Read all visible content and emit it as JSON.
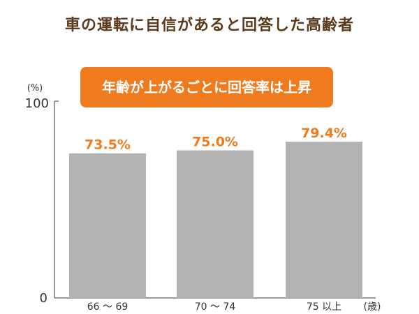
{
  "chart_data": {
    "type": "bar",
    "title": "車の運転に自信があると回答した高齢者",
    "annotation": "年齢が上がるごとに回答率は上昇",
    "ylabel": "(%)",
    "xlabel": "(歳)",
    "categories": [
      "66 ～ 69",
      "70 ～ 74",
      "75 以上"
    ],
    "values": [
      73.5,
      75.0,
      79.4
    ],
    "data_labels": [
      "73.5%",
      "75.0%",
      "79.4%"
    ],
    "y_ticks": [
      "0",
      "100"
    ],
    "ylim": [
      0,
      100
    ],
    "grid": false,
    "colors": {
      "bar": "#b3b3b3",
      "label": "#f07b1e",
      "banner": "#f07b1e",
      "title": "#5a3a1a"
    }
  }
}
